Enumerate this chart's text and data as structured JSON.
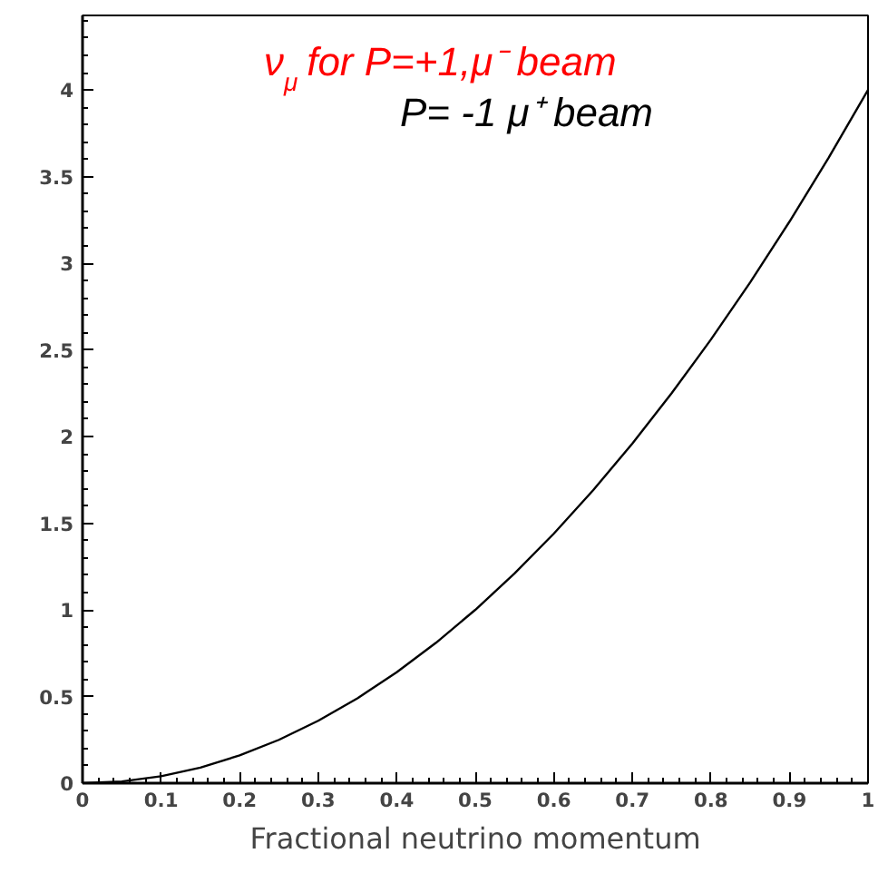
{
  "chart_data": {
    "type": "line",
    "xlabel": "Fractional neutrino momentum",
    "x": [
      0,
      0.05,
      0.1,
      0.15,
      0.2,
      0.25,
      0.3,
      0.35,
      0.4,
      0.45,
      0.5,
      0.55,
      0.6,
      0.65,
      0.7,
      0.75,
      0.8,
      0.85,
      0.9,
      0.95,
      1
    ],
    "series": [
      {
        "color": "#000000",
        "values": [
          0,
          0.01,
          0.04,
          0.09,
          0.16,
          0.25,
          0.36,
          0.49,
          0.64,
          0.81,
          1.0,
          1.21,
          1.44,
          1.69,
          1.96,
          2.25,
          2.56,
          2.89,
          3.24,
          3.61,
          4.0
        ]
      }
    ],
    "xlim": [
      0,
      1
    ],
    "ylim": [
      0,
      4.43
    ],
    "xticks": [
      0,
      0.1,
      0.2,
      0.3,
      0.4,
      0.5,
      0.6,
      0.7,
      0.8,
      0.9,
      1
    ],
    "yticks": [
      0,
      0.5,
      1,
      1.5,
      2,
      2.5,
      3,
      3.5,
      4
    ],
    "annotations": [
      "ν$_{μ}$ for P=+1,μ⁻ beam",
      "P= -1 μ⁺ beam"
    ],
    "grid": false,
    "marker": "none",
    "line_style": "solid"
  }
}
